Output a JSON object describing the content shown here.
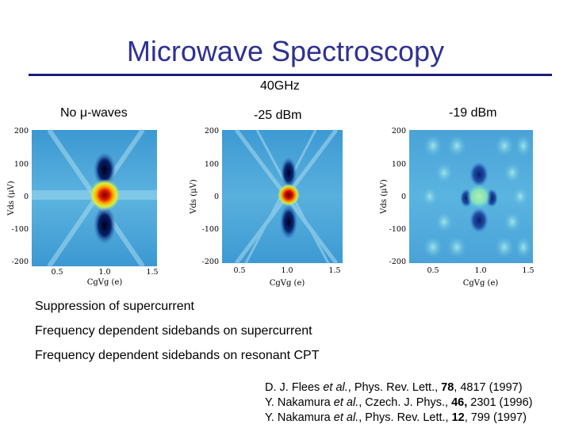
{
  "title": "Microwave Spectroscopy",
  "frequency": "40GHz",
  "panels": [
    {
      "label": "No μ-waves",
      "xlabel": "CgVg (e)",
      "ylabel": "Vds (μV)",
      "xticks": [
        "0.5",
        "1.0",
        "1.5"
      ],
      "yticks": [
        "200",
        "100",
        "0",
        "-100",
        "-200"
      ]
    },
    {
      "label": "-25 dBm",
      "xlabel": "CgVg (e)",
      "ylabel": "Vds (μV)",
      "xticks": [
        "0.5",
        "1.0",
        "1.5"
      ],
      "yticks": [
        "200",
        "100",
        "0",
        "-100",
        "-200"
      ]
    },
    {
      "label": "-19 dBm",
      "xlabel": "CgVg (e)",
      "ylabel": "Vds (μV)",
      "xticks": [
        "0.5",
        "1.0",
        "1.5"
      ],
      "yticks": [
        "200",
        "100",
        "0",
        "-100",
        "-200"
      ]
    }
  ],
  "bullets": [
    "Suppression of supercurrent",
    "Frequency dependent sidebands on supercurrent",
    "Frequency dependent sidebands on resonant CPT"
  ],
  "references": [
    {
      "authors": "D. J. Flees ",
      "etal": "et al.",
      "journal": ", Phys. Rev. Lett., ",
      "volume": "78",
      "rest": ", 4817 (1997)"
    },
    {
      "authors": "Y. Nakamura ",
      "etal": "et al.",
      "journal": ", Czech. J. Phys., ",
      "volume": "46,",
      "rest": " 2301 (1996)"
    },
    {
      "authors": "Y. Nakamura ",
      "etal": "et al.",
      "journal": ", Phys. Rev. Lett., ",
      "volume": "12",
      "rest": ", 799 (1997)"
    }
  ],
  "colors": {
    "title": "#2e3192",
    "map_bg": "#4aa3d6"
  }
}
